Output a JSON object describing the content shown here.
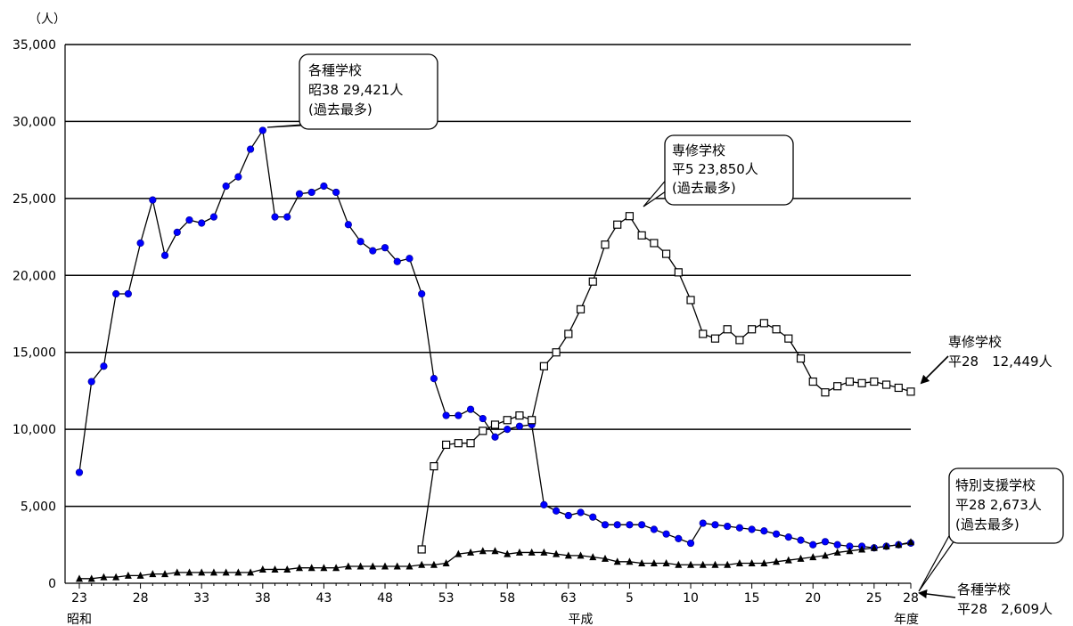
{
  "chart_data": {
    "type": "line",
    "y_unit": "（人）",
    "x_unit": "年度",
    "ylim": [
      0,
      35000
    ],
    "y_ticks": [
      0,
      5000,
      10000,
      15000,
      20000,
      25000,
      30000,
      35000
    ],
    "y_tick_labels": [
      "0",
      "5,000",
      "10,000",
      "15,000",
      "20,000",
      "25,000",
      "30,000",
      "35,000"
    ],
    "grid": true,
    "x_tick_labels": [
      {
        "index": 0,
        "label": "23"
      },
      {
        "index": 5,
        "label": "28"
      },
      {
        "index": 10,
        "label": "33"
      },
      {
        "index": 15,
        "label": "38"
      },
      {
        "index": 20,
        "label": "43"
      },
      {
        "index": 25,
        "label": "48"
      },
      {
        "index": 30,
        "label": "53"
      },
      {
        "index": 35,
        "label": "58"
      },
      {
        "index": 40,
        "label": "63"
      },
      {
        "index": 45,
        "label": "5"
      },
      {
        "index": 50,
        "label": "10"
      },
      {
        "index": 55,
        "label": "15"
      },
      {
        "index": 60,
        "label": "20"
      },
      {
        "index": 65,
        "label": "25"
      },
      {
        "index": 68,
        "label": "28"
      }
    ],
    "era_labels": [
      {
        "index": 0,
        "label": "昭和"
      },
      {
        "index": 41,
        "label": "平成"
      }
    ],
    "series": [
      {
        "name": "各種学校",
        "color": "#0000ff",
        "marker": "circle-filled",
        "start_index": 0,
        "values": [
          7200,
          13100,
          14100,
          18800,
          18800,
          22100,
          24900,
          21300,
          22800,
          23600,
          23400,
          23800,
          25800,
          26400,
          28200,
          29421,
          23800,
          23800,
          25300,
          25400,
          25800,
          25400,
          23300,
          22200,
          21600,
          21800,
          20900,
          21100,
          18800,
          13300,
          10900,
          10900,
          11300,
          10700,
          9500,
          10000,
          10200,
          10300,
          5100,
          4700,
          4400,
          4600,
          4300,
          3800,
          3800,
          3800,
          3800,
          3500,
          3200,
          2900,
          2600,
          3900,
          3800,
          3700,
          3600,
          3500,
          3400,
          3200,
          3000,
          2800,
          2500,
          2700,
          2500,
          2400,
          2400,
          2300,
          2400,
          2500,
          2609
        ]
      },
      {
        "name": "専修学校",
        "color": "#000000",
        "marker": "square-open",
        "start_index": 28,
        "values": [
          2200,
          7600,
          9000,
          9100,
          9100,
          9900,
          10300,
          10600,
          10900,
          10600,
          14100,
          15000,
          16200,
          17800,
          19600,
          22000,
          23300,
          23850,
          22600,
          22100,
          21400,
          20200,
          18400,
          16200,
          15900,
          16500,
          15800,
          16500,
          16900,
          16500,
          15900,
          14600,
          13100,
          12400,
          12800,
          13100,
          13000,
          13100,
          12900,
          12700,
          12449
        ]
      },
      {
        "name": "特別支援学校",
        "color": "#000000",
        "marker": "triangle-filled",
        "start_index": 0,
        "values": [
          300,
          300,
          400,
          400,
          500,
          500,
          600,
          600,
          700,
          700,
          700,
          700,
          700,
          700,
          700,
          900,
          900,
          900,
          1000,
          1000,
          1000,
          1000,
          1100,
          1100,
          1100,
          1100,
          1100,
          1100,
          1200,
          1200,
          1300,
          1900,
          2000,
          2100,
          2100,
          1900,
          2000,
          2000,
          2000,
          1900,
          1800,
          1800,
          1700,
          1600,
          1400,
          1400,
          1300,
          1300,
          1300,
          1200,
          1200,
          1200,
          1200,
          1200,
          1300,
          1300,
          1300,
          1400,
          1500,
          1600,
          1700,
          1800,
          2000,
          2100,
          2200,
          2300,
          2400,
          2500,
          2673
        ]
      }
    ],
    "annotations": [
      {
        "id": "peak-kakushu",
        "lines": [
          "各種学校",
          "昭38  29,421人",
          "(過去最多)"
        ],
        "boxed": true
      },
      {
        "id": "peak-senshu",
        "lines": [
          "専修学校",
          "平5  23,850人",
          "(過去最多)"
        ],
        "boxed": true
      },
      {
        "id": "end-senshu",
        "lines": [
          "専修学校",
          "平28　12,449人"
        ],
        "boxed": false
      },
      {
        "id": "end-tokubetsu",
        "lines": [
          "特別支援学校",
          "平28 2,673人",
          "(過去最多)"
        ],
        "boxed": true
      },
      {
        "id": "end-kakushu",
        "lines": [
          "各種学校",
          "平28　2,609人"
        ],
        "boxed": false
      }
    ]
  }
}
